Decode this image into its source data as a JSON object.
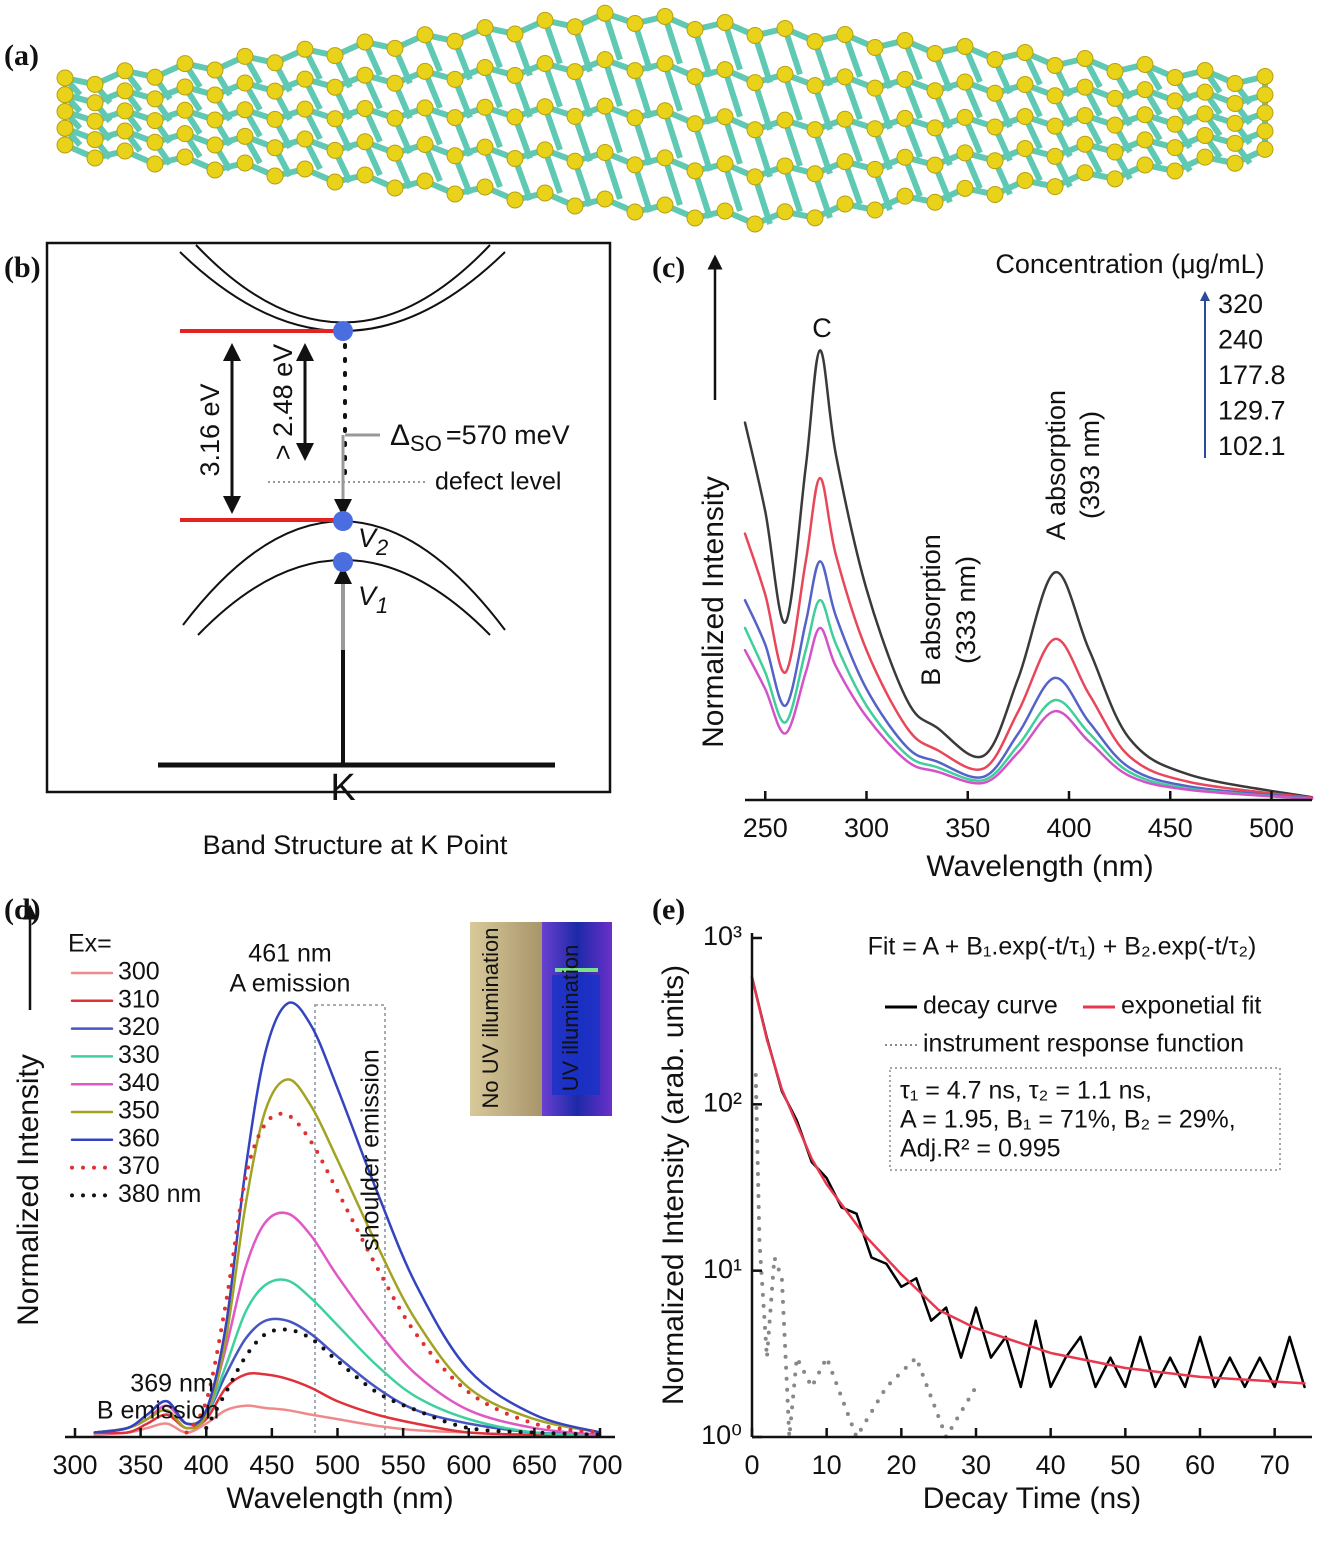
{
  "panel_labels": [
    "(a)",
    "(b)",
    "(c)",
    "(d)",
    "(e)"
  ],
  "band_diagram": {
    "title": "Band Structure at K Point",
    "gap": "3.16 eV",
    "emission_gap": "> 2.48 eV",
    "delta": "Δ",
    "delta_sub": "SO",
    "splitting": "=570 meV",
    "defect": "defect level",
    "v2": "V",
    "v2_sub": "2",
    "v1": "V",
    "v1_sub": "1",
    "k": "K"
  },
  "chart_data": [
    {
      "type": "line",
      "smooth": true,
      "y_label": "Normalized Intensity",
      "x_label": "Wavelength (nm)",
      "legend_title": "Concentration (μg/mL)",
      "annotations": [
        "C",
        "B absorption",
        "(333 nm)",
        "A absorption",
        "(393 nm)"
      ],
      "x": [
        240,
        250,
        260,
        270,
        277,
        285,
        300,
        320,
        335,
        358,
        375,
        393,
        410,
        430,
        460,
        520
      ],
      "xlim": [
        240,
        520
      ],
      "xticks": [
        250,
        300,
        350,
        400,
        450,
        500
      ],
      "ylim": [
        0,
        1
      ],
      "series": [
        {
          "name": "320",
          "color": "#3a3a3a",
          "values": [
            0.68,
            0.52,
            0.32,
            0.6,
            0.81,
            0.62,
            0.38,
            0.18,
            0.13,
            0.08,
            0.22,
            0.41,
            0.27,
            0.11,
            0.045,
            0.005
          ]
        },
        {
          "name": "240",
          "color": "#e8475a",
          "values": [
            0.48,
            0.37,
            0.23,
            0.43,
            0.58,
            0.44,
            0.27,
            0.13,
            0.09,
            0.057,
            0.16,
            0.29,
            0.19,
            0.078,
            0.032,
            0.004
          ]
        },
        {
          "name": "177.8",
          "color": "#5562c8",
          "values": [
            0.36,
            0.28,
            0.17,
            0.32,
            0.43,
            0.33,
            0.2,
            0.095,
            0.069,
            0.042,
            0.12,
            0.22,
            0.14,
            0.058,
            0.024,
            0.003
          ]
        },
        {
          "name": "129.7",
          "color": "#3fcf9a",
          "values": [
            0.31,
            0.23,
            0.14,
            0.27,
            0.36,
            0.28,
            0.17,
            0.081,
            0.059,
            0.036,
            0.099,
            0.18,
            0.12,
            0.05,
            0.02,
            0.002
          ]
        },
        {
          "name": "102.1",
          "color": "#d452c8",
          "values": [
            0.27,
            0.2,
            0.12,
            0.23,
            0.31,
            0.24,
            0.15,
            0.07,
            0.051,
            0.031,
            0.086,
            0.16,
            0.105,
            0.043,
            0.018,
            0.002
          ]
        }
      ]
    },
    {
      "type": "line",
      "smooth": true,
      "y_label": "Normalized Intensity",
      "x_label": "Wavelength (nm)",
      "legend_title": "Ex=",
      "annotations": [
        "461 nm",
        "A emission",
        "369 nm",
        "B emission",
        "shoulder emission"
      ],
      "inset_labels": [
        "No UV illumination",
        "UV illumination"
      ],
      "x": [
        315,
        340,
        355,
        370,
        385,
        400,
        415,
        430,
        445,
        462,
        480,
        500,
        530,
        560,
        600,
        650,
        700
      ],
      "xlim": [
        300,
        700
      ],
      "xticks": [
        300,
        350,
        400,
        450,
        500,
        550,
        600,
        650,
        700
      ],
      "ylim": [
        0,
        1
      ],
      "series": [
        {
          "name": "300",
          "color": "#f08a8a",
          "values": [
            0.005,
            0.01,
            0.02,
            0.03,
            0.01,
            0.03,
            0.06,
            0.07,
            0.065,
            0.06,
            0.05,
            0.04,
            0.025,
            0.015,
            0.01,
            null,
            null
          ]
        },
        {
          "name": "310",
          "color": "#e0303a",
          "values": [
            0.01,
            0.01,
            0.03,
            0.05,
            0.02,
            0.04,
            0.11,
            0.14,
            0.14,
            0.13,
            0.11,
            0.08,
            0.05,
            0.03,
            0.01,
            0.005,
            0.002
          ]
        },
        {
          "name": "320",
          "color": "#4656c2",
          "values": [
            0.01,
            0.02,
            0.05,
            0.08,
            0.03,
            0.05,
            0.14,
            0.22,
            0.26,
            0.26,
            0.23,
            0.18,
            0.11,
            0.06,
            0.03,
            0.01,
            0.005
          ]
        },
        {
          "name": "330",
          "color": "#3fd0a0",
          "values": [
            0.01,
            0.02,
            0.04,
            0.07,
            0.03,
            0.05,
            0.16,
            0.28,
            0.34,
            0.35,
            0.31,
            0.25,
            0.16,
            0.09,
            0.04,
            0.01,
            0.005
          ]
        },
        {
          "name": "340",
          "color": "#e058c4",
          "values": [
            0.01,
            0.02,
            0.04,
            0.07,
            0.03,
            0.05,
            0.2,
            0.38,
            0.48,
            0.5,
            0.45,
            0.36,
            0.24,
            0.14,
            0.06,
            0.02,
            0.005
          ]
        },
        {
          "name": "350",
          "color": "#a3a323",
          "values": [
            0.01,
            0.02,
            0.04,
            0.06,
            0.02,
            0.05,
            0.22,
            0.52,
            0.73,
            0.8,
            0.74,
            0.62,
            0.43,
            0.26,
            0.11,
            0.04,
            0.01
          ]
        },
        {
          "name": "360",
          "color": "#3444c0",
          "values": [
            0.01,
            0.02,
            0.05,
            0.08,
            0.03,
            0.06,
            0.25,
            0.6,
            0.86,
            0.97,
            0.92,
            0.78,
            0.55,
            0.34,
            0.15,
            0.05,
            0.01
          ]
        },
        {
          "name": "370",
          "color": "#e03030",
          "style": "dotted",
          "values": [
            null,
            null,
            null,
            null,
            0.01,
            0.08,
            0.3,
            0.58,
            0.7,
            0.72,
            0.66,
            0.55,
            0.38,
            0.23,
            0.1,
            0.03,
            0.01
          ]
        },
        {
          "name": "380 nm",
          "color": "#111111",
          "style": "dotted",
          "values": [
            null,
            null,
            null,
            null,
            null,
            0.02,
            0.1,
            0.18,
            0.23,
            0.24,
            0.22,
            0.17,
            0.1,
            0.06,
            0.02,
            0.01,
            0.005
          ]
        }
      ]
    },
    {
      "type": "line",
      "log_y": true,
      "y_label": "Normalized Intensity (arab. units)",
      "x_label": "Decay Time (ns)",
      "fit_formula": "Fit = A + B₁.exp(-t/τ₁) + B₂.exp(-t/τ₂)",
      "fit_parameters": [
        "τ₁ = 4.7 ns, τ₂ = 1.1 ns,",
        "A = 1.95, B₁ = 71%, B₂ = 29%,",
        "Adj.R² = 0.995"
      ],
      "xlim": [
        0,
        75
      ],
      "xticks": [
        0,
        10,
        20,
        30,
        40,
        50,
        60,
        70
      ],
      "ylim": [
        1,
        1000
      ],
      "yticks": [
        {
          "value": 1,
          "label": "10⁰"
        },
        {
          "value": 10,
          "label": "10¹"
        },
        {
          "value": 100,
          "label": "10²"
        },
        {
          "value": 1000,
          "label": "10³"
        }
      ],
      "series": [
        {
          "name": "decay curve",
          "color": "#000000",
          "x": [
            0,
            2,
            4,
            6,
            8,
            10,
            12,
            14,
            16,
            18,
            20,
            22,
            24,
            26,
            28,
            30,
            32,
            34,
            36,
            38,
            40,
            42,
            44,
            46,
            48,
            50,
            52,
            54,
            56,
            58,
            60,
            62,
            64,
            66,
            68,
            70,
            72,
            74
          ],
          "values": [
            580,
            250,
            120,
            80,
            45,
            36,
            24,
            22,
            12,
            11,
            8,
            9,
            5,
            6,
            3,
            6,
            3,
            4,
            2,
            5,
            2,
            3,
            4,
            2,
            3,
            2,
            4,
            2,
            3,
            2,
            4,
            2,
            3,
            2,
            3,
            2,
            4,
            2
          ]
        },
        {
          "name": "exponetial fit",
          "color": "#e8384f",
          "x": [
            0,
            2,
            4,
            6,
            8,
            10,
            15,
            20,
            25,
            30,
            40,
            50,
            60,
            74
          ],
          "values": [
            580,
            245,
            123,
            76,
            47,
            33,
            16.5,
            9.5,
            5.8,
            4.5,
            3.2,
            2.6,
            2.3,
            2.1
          ]
        },
        {
          "name": "instrument response function",
          "color": "#888888",
          "style": "dotted",
          "x": [
            0.5,
            1,
            2,
            3,
            4,
            5,
            6,
            8,
            10,
            14,
            18,
            22,
            26,
            30
          ],
          "values": [
            150,
            15,
            3,
            12,
            9,
            1,
            3,
            2,
            3,
            1,
            2,
            3,
            1,
            2
          ]
        }
      ]
    }
  ]
}
